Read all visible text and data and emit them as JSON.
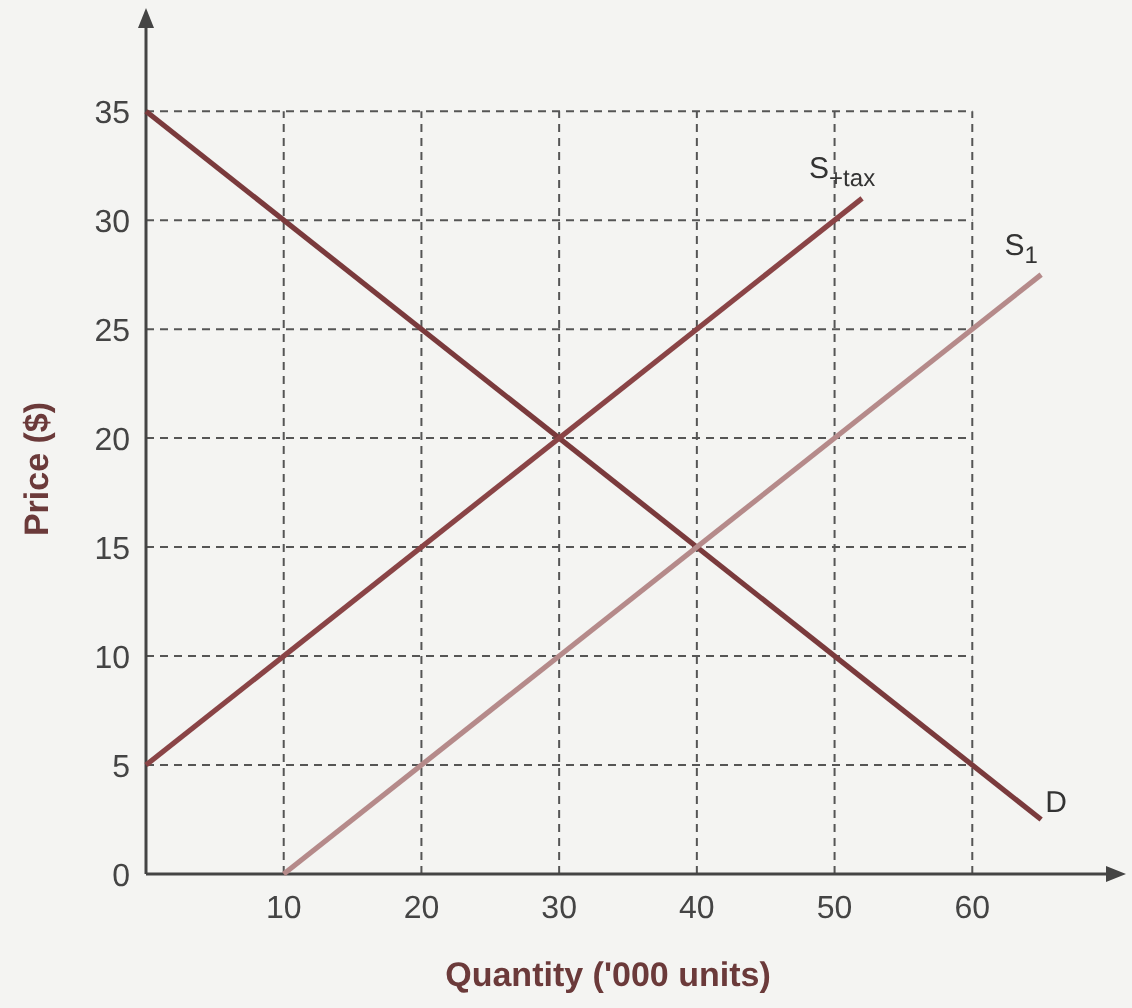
{
  "chart_data": {
    "type": "line",
    "xlabel": "Quantity ('000 units)",
    "ylabel": "Price ($)",
    "xlim": [
      0,
      70
    ],
    "ylim": [
      0,
      39
    ],
    "xticks": [
      10,
      20,
      30,
      40,
      50,
      60
    ],
    "yticks": [
      0,
      5,
      10,
      15,
      20,
      25,
      30,
      35
    ],
    "grid": true,
    "line_style": "solid",
    "marker": "none",
    "series": [
      {
        "name": "D",
        "color": "#7a3a3c",
        "x": [
          0,
          65
        ],
        "values": [
          35,
          2.5
        ]
      },
      {
        "name": "S$_{+tax}$",
        "color": "#8a4446",
        "x": [
          0,
          52
        ],
        "values": [
          5,
          31
        ]
      },
      {
        "name": "S$_{1}$",
        "color": "#b58a8a",
        "x": [
          10,
          65
        ],
        "values": [
          0,
          27.5
        ]
      }
    ]
  }
}
